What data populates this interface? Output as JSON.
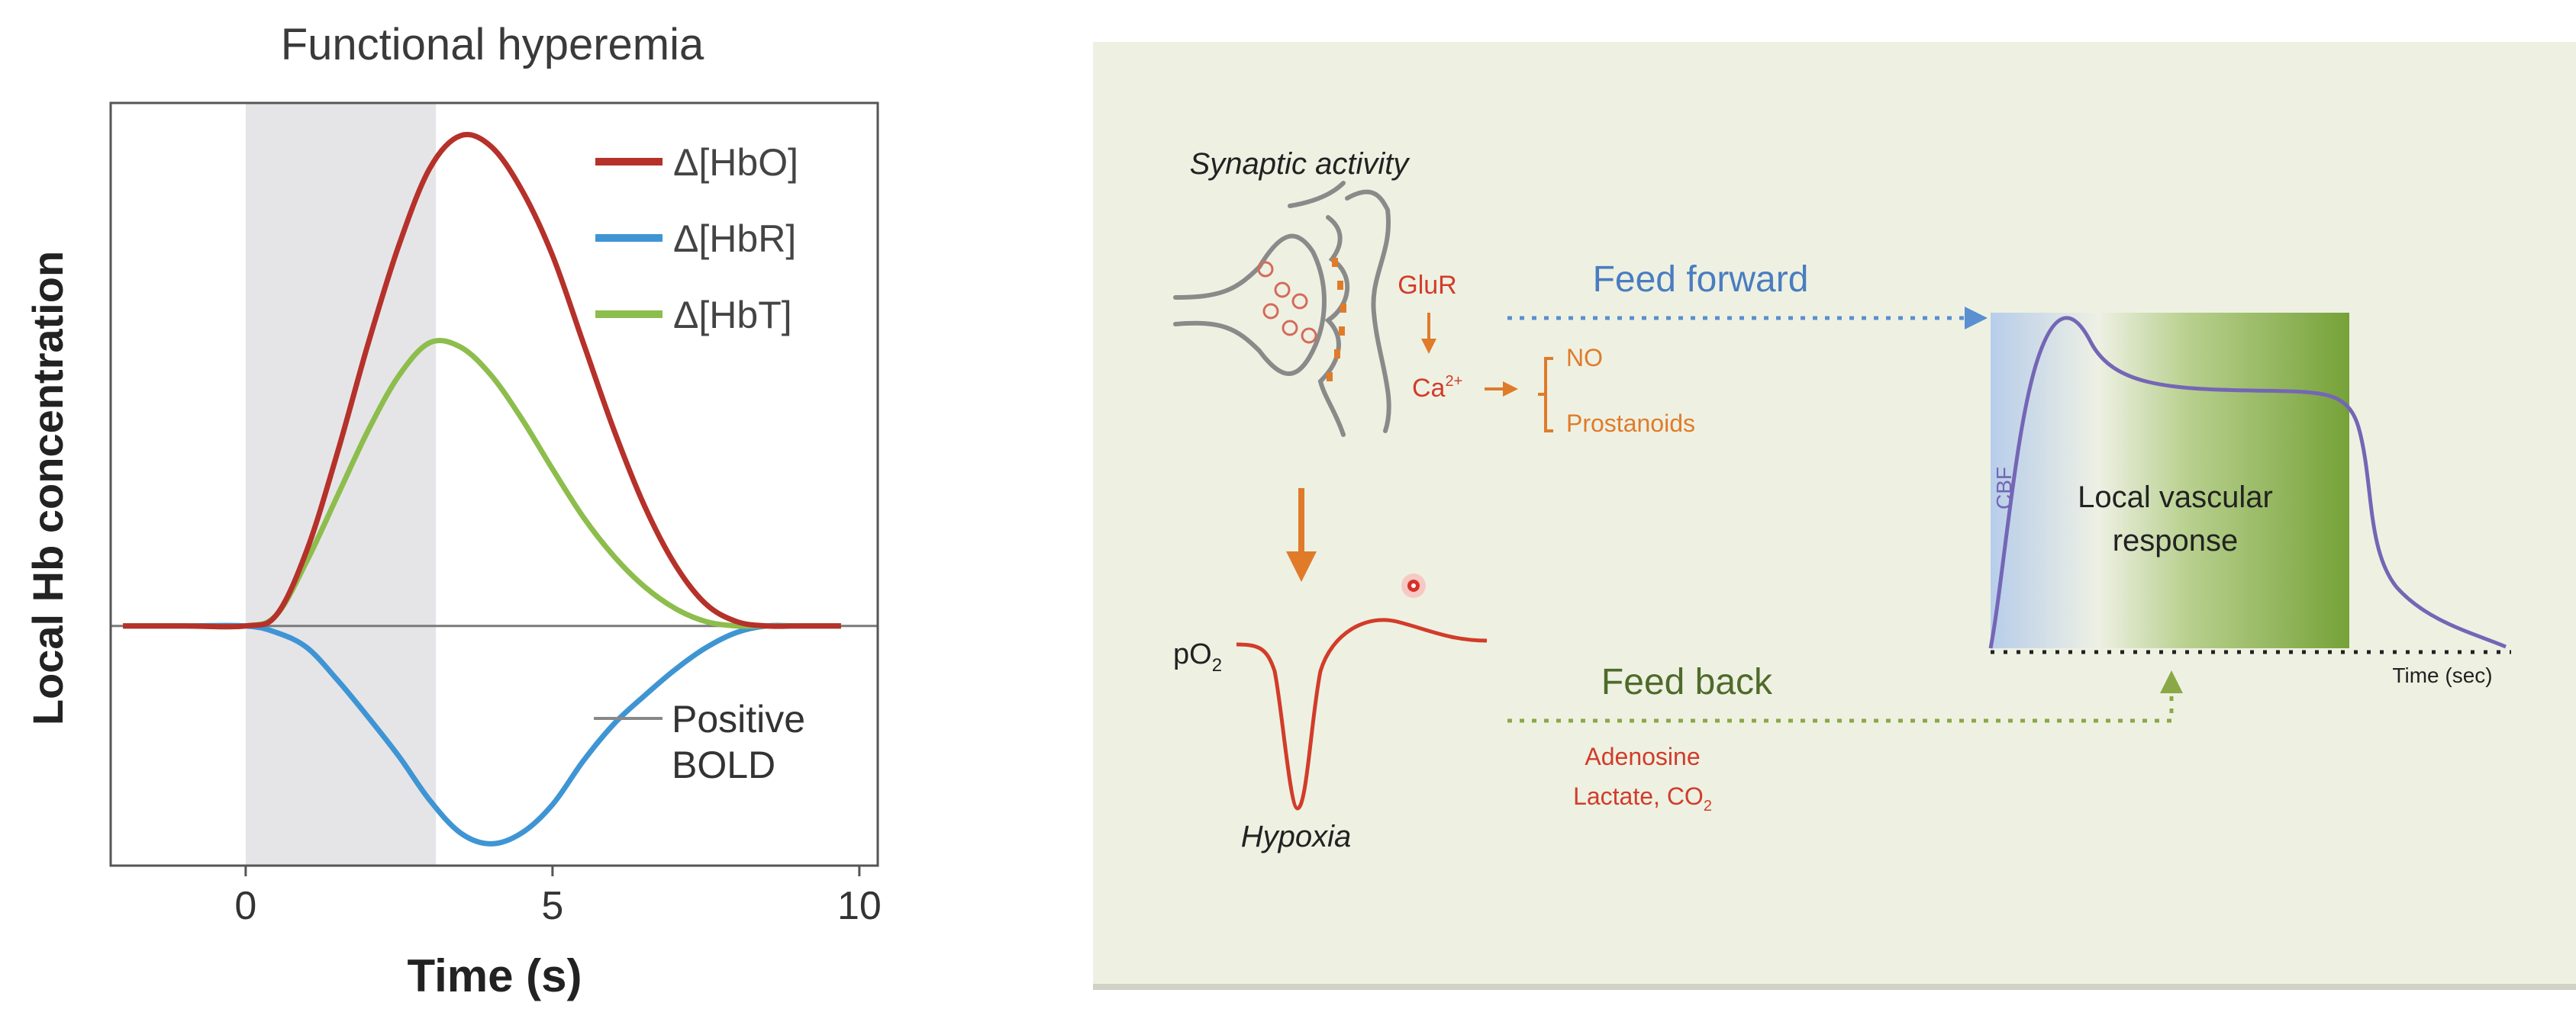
{
  "left_chart": {
    "title": "Functional hyperemia",
    "ylabel": "Local Hb concentration",
    "xlabel": "Time (s)",
    "x_ticks": [
      "0",
      "5",
      "10"
    ],
    "annotation": [
      "Positive",
      "BOLD"
    ],
    "stim_window": [
      0,
      3.1
    ],
    "xlim": [
      -2.2,
      10.3
    ],
    "colors": {
      "HbO": "#b5312a",
      "HbR": "#3f95d4",
      "HbT": "#8dbd4c",
      "stim": "#e5e5e8"
    }
  },
  "chart_data": {
    "type": "line",
    "title": "Functional hyperemia",
    "xlabel": "Time (s)",
    "ylabel": "Local Hb concentration",
    "xlim": [
      -2.2,
      10.3
    ],
    "ylim": [
      -1.1,
      2.4
    ],
    "x_ticks": [
      0,
      5,
      10
    ],
    "grid": false,
    "legend_position": "top-right",
    "series": [
      {
        "name": "Δ[HbO]",
        "color": "#b5312a",
        "x": [
          -2,
          -1,
          0,
          0.5,
          1,
          1.5,
          2,
          2.5,
          3,
          3.5,
          4,
          4.5,
          5,
          5.5,
          6,
          6.5,
          7,
          7.5,
          8,
          8.5,
          9,
          9.7
        ],
        "y": [
          0,
          0,
          0,
          0.05,
          0.35,
          0.8,
          1.3,
          1.75,
          2.1,
          2.25,
          2.2,
          2.0,
          1.7,
          1.3,
          0.9,
          0.55,
          0.28,
          0.1,
          0.02,
          0,
          0,
          0
        ]
      },
      {
        "name": "Δ[HbR]",
        "color": "#3f95d4",
        "x": [
          -2,
          -1,
          0,
          0.5,
          1,
          1.5,
          2,
          2.5,
          3,
          3.5,
          4,
          4.5,
          5,
          5.5,
          6,
          6.5,
          7,
          7.5,
          8,
          8.5,
          9,
          9.7
        ],
        "y": [
          0,
          0,
          0,
          -0.03,
          -0.1,
          -0.25,
          -0.42,
          -0.6,
          -0.8,
          -0.95,
          -1.0,
          -0.95,
          -0.82,
          -0.62,
          -0.45,
          -0.32,
          -0.2,
          -0.1,
          -0.03,
          0,
          0,
          0
        ]
      },
      {
        "name": "Δ[HbT]",
        "color": "#8dbd4c",
        "x": [
          -2,
          -1,
          0,
          0.5,
          1,
          1.5,
          2,
          2.5,
          3,
          3.5,
          4,
          4.5,
          5,
          5.5,
          6,
          6.5,
          7,
          7.5,
          8,
          8.5,
          9,
          9.7
        ],
        "y": [
          0,
          0,
          0,
          0.05,
          0.3,
          0.6,
          0.9,
          1.15,
          1.3,
          1.28,
          1.15,
          0.95,
          0.72,
          0.5,
          0.32,
          0.18,
          0.08,
          0.02,
          0,
          0,
          0,
          0
        ]
      }
    ]
  },
  "diagram": {
    "synaptic_activity": "Synaptic activity",
    "glur": "GluR",
    "ca": "Ca",
    "ca_sup": "2+",
    "no": "NO",
    "prostanoids": "Prostanoids",
    "feed_forward": "Feed forward",
    "feed_back": "Feed back",
    "po2": "pO",
    "po2_sub": "2",
    "hypoxia": "Hypoxia",
    "adenosine": "Adenosine",
    "lactate": "Lactate, CO",
    "lactate_sub": "2",
    "cbf": "CBF",
    "local_vascular_1": "Local vascular",
    "local_vascular_2": "response",
    "time_sec": "Time (sec)",
    "colors": {
      "orange": "#e07b2a",
      "red": "#d23c2a",
      "blue_text": "#4a7dc0",
      "green_text": "#4f6a2a",
      "purple": "#7466b5",
      "gradient_blue": "#b9cde8",
      "gradient_green": "#77a33a"
    }
  }
}
